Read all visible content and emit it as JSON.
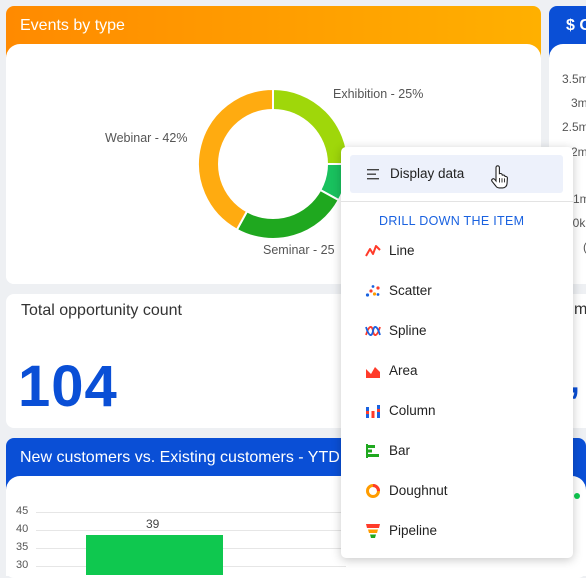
{
  "events_card": {
    "title": "Events by type",
    "slices": [
      {
        "label": "Exhibition - 25%",
        "value": 25,
        "color": "#9fd70a"
      },
      {
        "label": "Seminar - 25%",
        "value": 25,
        "color": "#1fa81f"
      },
      {
        "label": "Webinar - 42%",
        "value": 42,
        "color": "#ffab10"
      }
    ],
    "hidden_slice_color": "#19c15e",
    "seminar_label_visible": "Seminar - 25"
  },
  "right_card": {
    "title": "$ C",
    "ticks": [
      "3.5m",
      "3m",
      "2.5m",
      "2m",
      "1m",
      "00k",
      "("
    ]
  },
  "opportunity_card": {
    "title": "Total opportunity count",
    "value": "104"
  },
  "right_fragment": {
    "text": "m",
    "mark": "’"
  },
  "customers_card": {
    "title": "New customers vs. Existing customers - YTD",
    "bar_value": "39",
    "y_ticks": [
      "45",
      "40",
      "35",
      "30"
    ],
    "bar_color": "#0fc84f"
  },
  "context_menu": {
    "display_data_label": "Display data",
    "section_title": "DRILL DOWN THE ITEM",
    "items": [
      {
        "label": "Line",
        "icon": "line-chart-icon"
      },
      {
        "label": "Scatter",
        "icon": "scatter-chart-icon"
      },
      {
        "label": "Spline",
        "icon": "spline-chart-icon"
      },
      {
        "label": "Area",
        "icon": "area-chart-icon"
      },
      {
        "label": "Column",
        "icon": "column-chart-icon"
      },
      {
        "label": "Bar",
        "icon": "bar-chart-icon"
      },
      {
        "label": "Doughnut",
        "icon": "doughnut-chart-icon"
      },
      {
        "label": "Pipeline",
        "icon": "pipeline-chart-icon"
      }
    ]
  }
}
